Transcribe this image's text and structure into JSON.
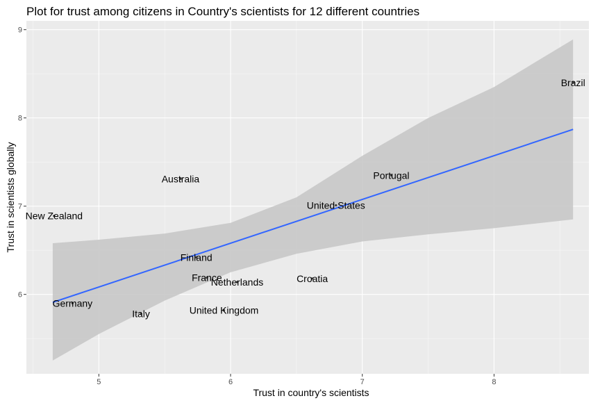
{
  "chart_data": {
    "type": "scatter",
    "title": "Plot for trust among citizens in Country's scientists for 12 different countries",
    "xlabel": "Trust in country's scientists",
    "ylabel": "Trust in scientists globally",
    "xlim": [
      4.45,
      8.72
    ],
    "ylim": [
      5.1,
      9.1
    ],
    "xticks": [
      5,
      6,
      7,
      8
    ],
    "yticks": [
      6,
      7,
      8,
      9
    ],
    "grid": true,
    "panel_background": "#ebebeb",
    "points": [
      {
        "label": "Brazil",
        "x": 8.6,
        "y": 8.4
      },
      {
        "label": "Portugal",
        "x": 7.22,
        "y": 7.35
      },
      {
        "label": "Australia",
        "x": 5.62,
        "y": 7.31
      },
      {
        "label": "United States",
        "x": 6.8,
        "y": 7.01
      },
      {
        "label": "New Zealand",
        "x": 4.66,
        "y": 6.89
      },
      {
        "label": "Finland",
        "x": 5.74,
        "y": 6.42
      },
      {
        "label": "France",
        "x": 5.82,
        "y": 6.19
      },
      {
        "label": "Croatia",
        "x": 6.62,
        "y": 6.18
      },
      {
        "label": "Netherlands",
        "x": 6.05,
        "y": 6.14
      },
      {
        "label": "Germany",
        "x": 4.8,
        "y": 5.9
      },
      {
        "label": "United Kingdom",
        "x": 5.95,
        "y": 5.82
      },
      {
        "label": "Italy",
        "x": 5.32,
        "y": 5.78
      }
    ],
    "fit_line": {
      "color": "#3366ff",
      "x": [
        4.65,
        8.6
      ],
      "y": [
        5.91,
        7.87
      ]
    },
    "confidence_band": {
      "color": "#c8c8c8",
      "x": [
        4.65,
        5.0,
        5.5,
        6.0,
        6.5,
        7.0,
        7.5,
        8.0,
        8.6
      ],
      "upper": [
        6.58,
        6.62,
        6.69,
        6.81,
        7.1,
        7.57,
        8.0,
        8.35,
        8.89
      ],
      "lower": [
        5.25,
        5.55,
        5.93,
        6.25,
        6.46,
        6.6,
        6.68,
        6.75,
        6.85
      ]
    }
  }
}
